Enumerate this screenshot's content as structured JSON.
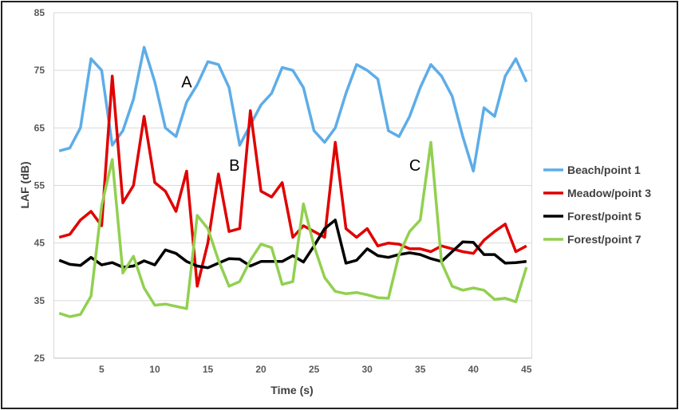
{
  "chart_data": {
    "type": "line",
    "title": "",
    "xlabel": "Time (s)",
    "ylabel": "LAF (dB)",
    "xlim": [
      1,
      45
    ],
    "ylim": [
      25,
      85
    ],
    "x_ticks": [
      "5",
      "10",
      "15",
      "20",
      "25",
      "30",
      "35",
      "40",
      "45"
    ],
    "y_ticks": [
      "25",
      "35",
      "45",
      "55",
      "65",
      "75",
      "85"
    ],
    "grid": "horizontal",
    "legend": "right",
    "x": [
      1,
      2,
      3,
      4,
      5,
      6,
      7,
      8,
      9,
      10,
      11,
      12,
      13,
      14,
      15,
      16,
      17,
      18,
      19,
      20,
      21,
      22,
      23,
      24,
      25,
      26,
      27,
      28,
      29,
      30,
      31,
      32,
      33,
      34,
      35,
      36,
      37,
      38,
      39,
      40,
      41,
      42,
      43,
      44,
      45
    ],
    "series": [
      {
        "name": "Beach/point 1",
        "color": "#5DADE8",
        "values": [
          61,
          61.5,
          65,
          77,
          75,
          62,
          64.5,
          70,
          79,
          73,
          65,
          63.5,
          69.5,
          72.5,
          76.5,
          76,
          72,
          62,
          65.5,
          69,
          71,
          75.5,
          75,
          72,
          64.5,
          62.5,
          65,
          71,
          76,
          75,
          73.5,
          64.5,
          63.5,
          67,
          72,
          76,
          74,
          70.5,
          63.5,
          57.5,
          68.5,
          67,
          74,
          77,
          73
        ]
      },
      {
        "name": "Meadow/point 3",
        "color": "#E00000",
        "values": [
          46,
          46.5,
          49,
          50.5,
          48,
          74,
          52,
          55,
          67,
          55.5,
          54,
          50.5,
          57.5,
          37.5,
          45,
          57,
          47,
          47.5,
          68,
          54,
          53,
          55.5,
          46,
          48,
          47,
          46,
          62.5,
          47.5,
          46,
          47.5,
          44.5,
          45,
          44.8,
          44,
          44,
          43.5,
          44.5,
          44,
          43.5,
          43.2,
          45.5,
          47,
          48.3,
          43.5,
          44.5
        ]
      },
      {
        "name": "Forest/point 5",
        "color": "#000000",
        "values": [
          42,
          41.3,
          41.1,
          42.5,
          41.2,
          41.6,
          40.8,
          41,
          41.9,
          41.2,
          43.8,
          43.2,
          41.8,
          41,
          40.7,
          41.5,
          42.3,
          42.2,
          41,
          41.8,
          41.8,
          41.8,
          42.8,
          41.7,
          44.5,
          47.5,
          49,
          41.5,
          42,
          44,
          42.8,
          42.5,
          43,
          43.3,
          43,
          42.3,
          41.8,
          43.5,
          45.2,
          45.1,
          43,
          43,
          41.5,
          41.6,
          41.8
        ]
      },
      {
        "name": "Forest/point 7",
        "color": "#92D050",
        "values": [
          32.8,
          32.2,
          32.6,
          35.8,
          51.5,
          59.5,
          39.8,
          42.7,
          37.2,
          34.2,
          34.4,
          34,
          33.6,
          49.8,
          47.5,
          42,
          37.5,
          38.3,
          42,
          44.8,
          44.2,
          37.8,
          38.3,
          51.8,
          44.5,
          39,
          36.6,
          36.2,
          36.4,
          36,
          35.5,
          35.4,
          43,
          47,
          49,
          62.5,
          41.6,
          37.5,
          36.8,
          37.2,
          36.8,
          35.2,
          35.4,
          34.8,
          40.8
        ]
      }
    ],
    "annotations": [
      {
        "text": "A",
        "x": 13,
        "y": 73
      },
      {
        "text": "B",
        "x": 17.5,
        "y": 58.5
      },
      {
        "text": "C",
        "x": 34.5,
        "y": 58.5
      }
    ]
  }
}
